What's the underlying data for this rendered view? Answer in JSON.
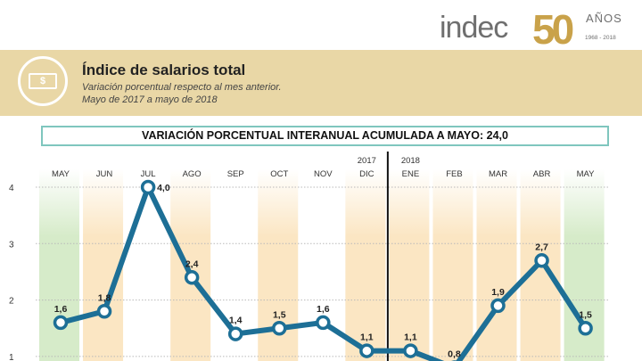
{
  "header": {
    "brand": "indec",
    "anniversary_number": "50",
    "anniversary_word": "AÑOS",
    "anniversary_years": "1968 - 2018",
    "title": "Índice de salarios total",
    "subtitle_line1": "Variación porcentual respecto al mes anterior.",
    "subtitle_line2": "Mayo de 2017 a mayo de 2018",
    "icon": "money-bill-icon",
    "icon_symbol": "$"
  },
  "banner": {
    "text": "VARIACIÓN PORCENTUAL INTERANUAL ACUMULADA A MAYO: 24,0"
  },
  "colors": {
    "accent": "#1d6f96",
    "band": "#e9d7a6",
    "column_orange": "#fbe6c3",
    "column_green": "#d6ebc9",
    "banner_border": "#7fc6be"
  },
  "chart_data": {
    "type": "line",
    "categories": [
      "MAY",
      "JUN",
      "JUL",
      "AGO",
      "SEP",
      "OCT",
      "NOV",
      "DIC",
      "ENE",
      "FEB",
      "MAR",
      "ABR",
      "MAY"
    ],
    "year_labels": [
      {
        "category_index": 7,
        "text": "2017"
      },
      {
        "category_index": 8,
        "text": "2018"
      }
    ],
    "series": [
      {
        "values": [
          1.6,
          1.8,
          4.0,
          2.4,
          1.4,
          1.5,
          1.6,
          1.1,
          1.1,
          0.8,
          1.9,
          2.7,
          1.5
        ]
      }
    ],
    "data_labels": [
      "1,6",
      "1,8",
      "4,0",
      "2,4",
      "1,4",
      "1,5",
      "1,6",
      "1,1",
      "1,1",
      "0,8",
      "1,9",
      "2,7",
      "1,5"
    ],
    "y_ticks": [
      1,
      2,
      3,
      4
    ],
    "ylim": [
      1,
      4
    ],
    "grid": true,
    "year_divider_between": [
      "DIC",
      "ENE"
    ]
  }
}
